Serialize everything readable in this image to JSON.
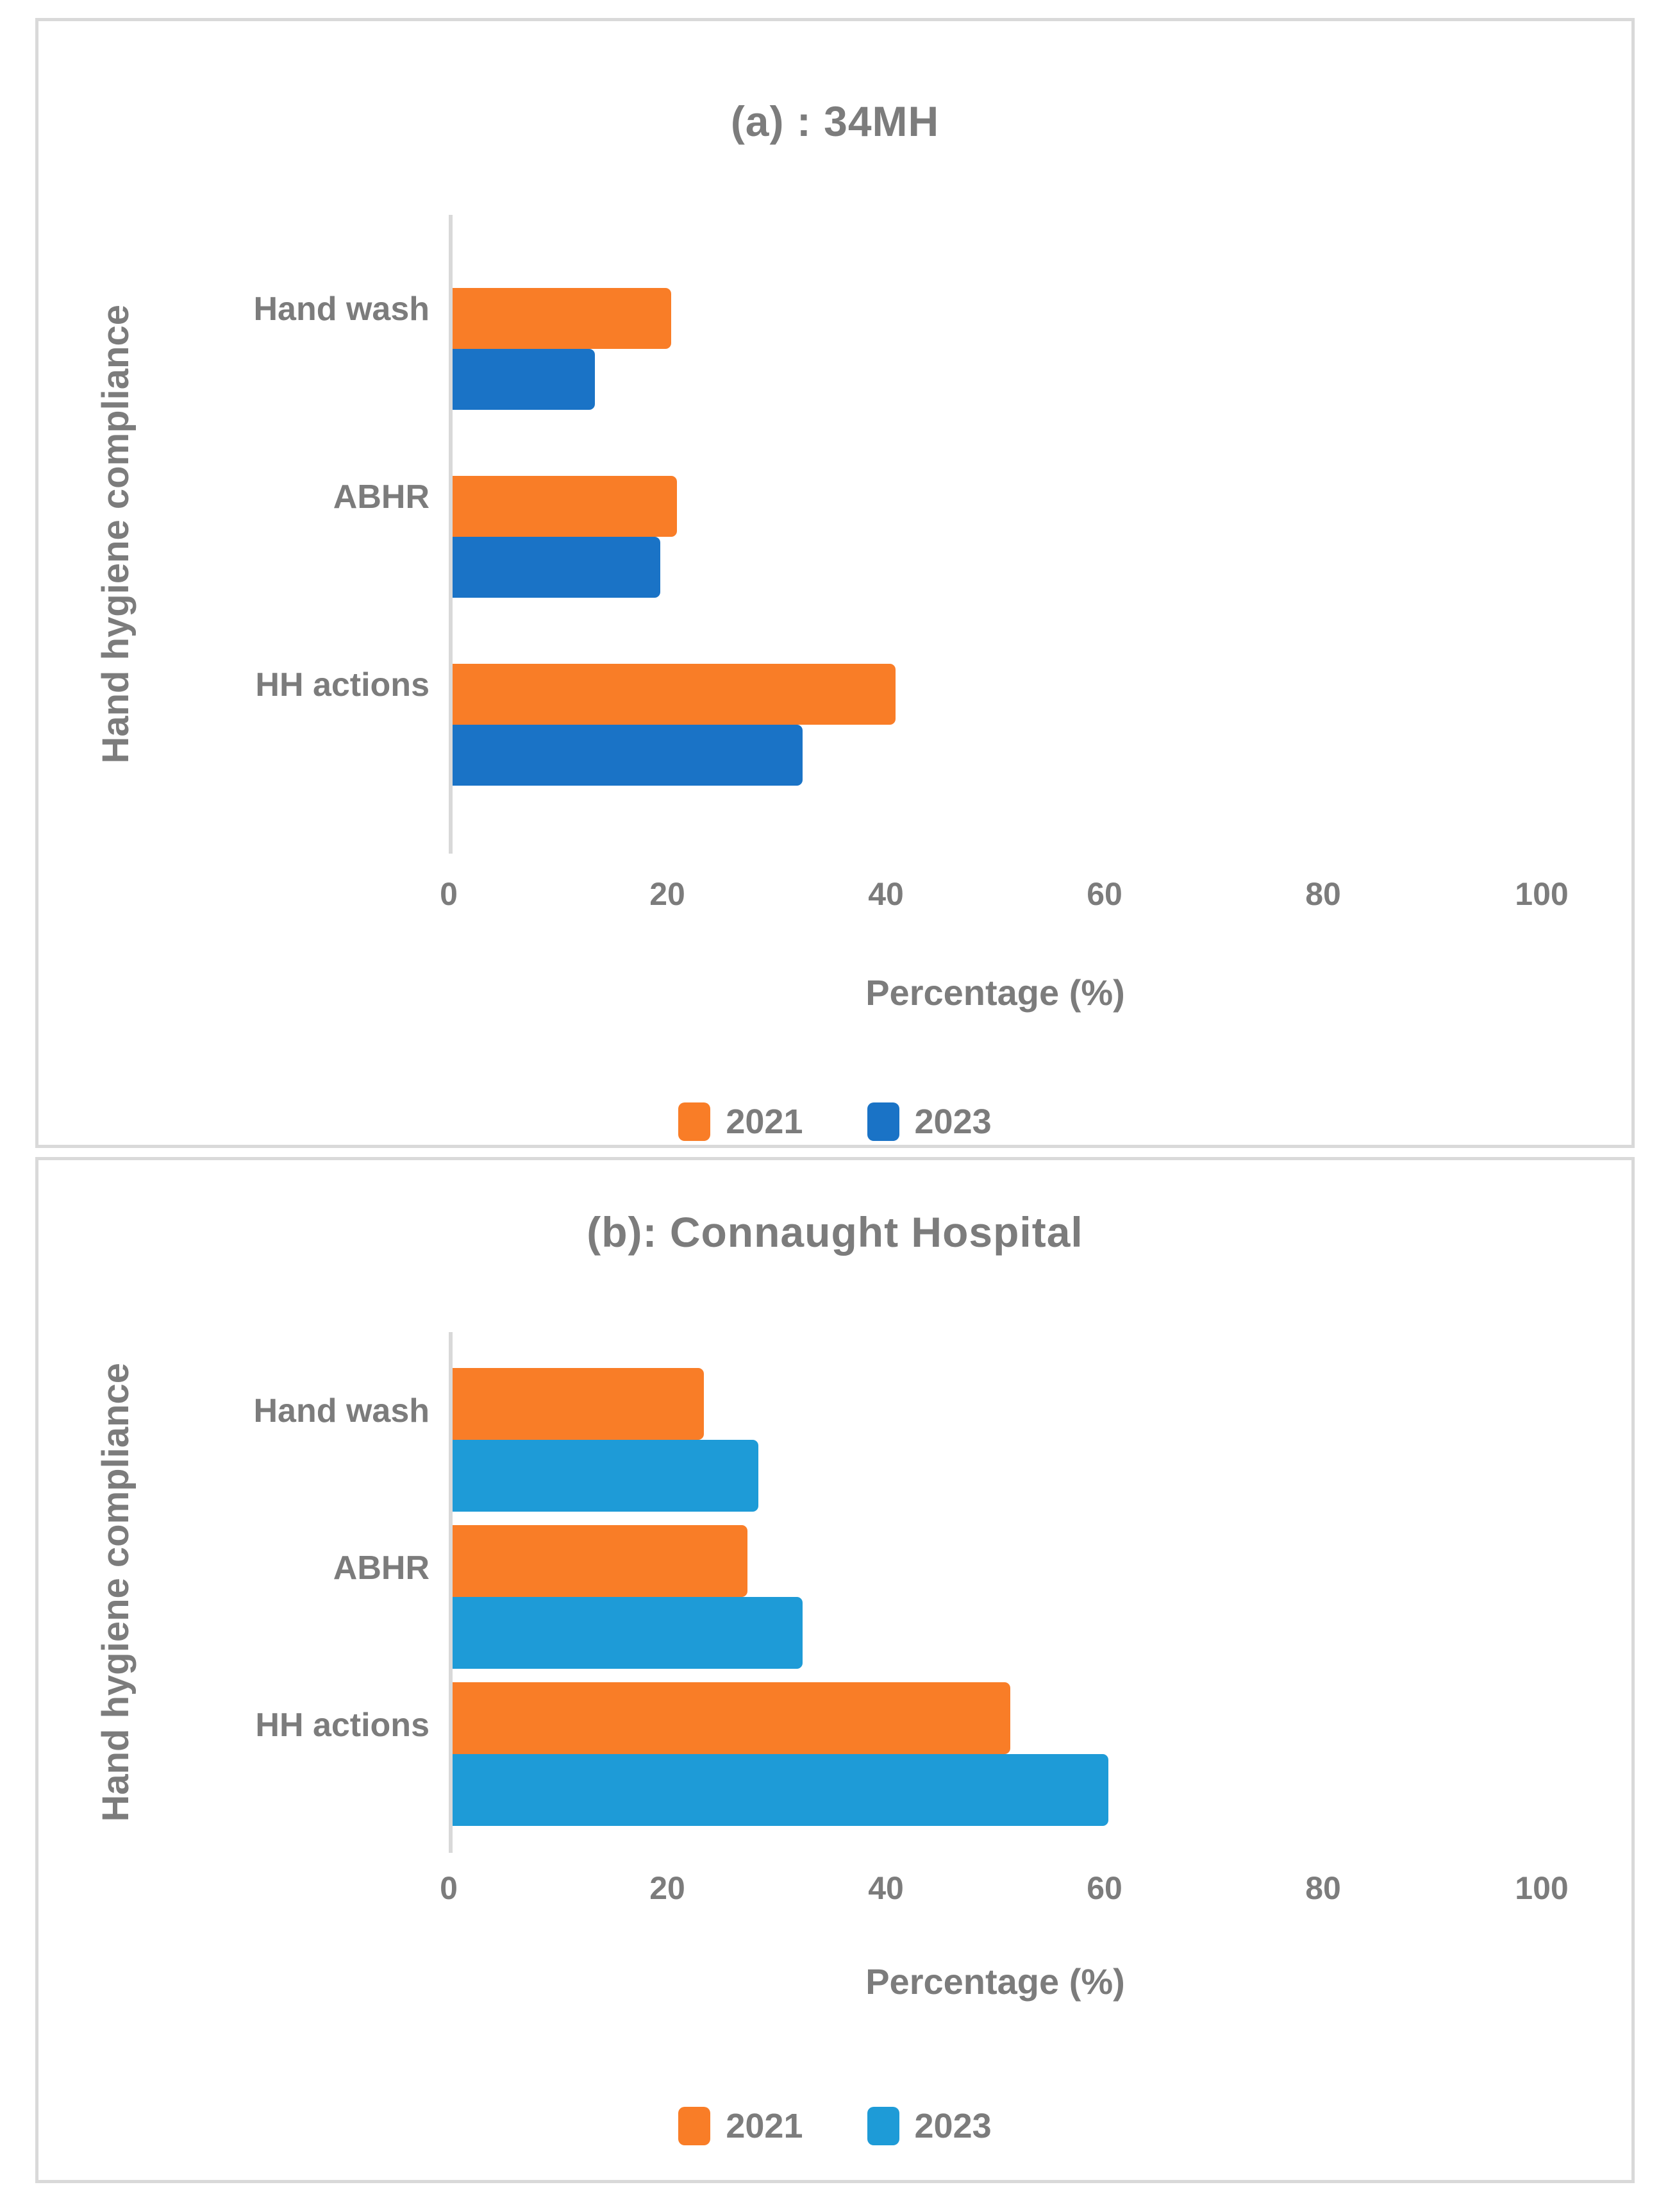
{
  "page": {
    "background": "#FFFFFF",
    "panel_border_color": "#D9D9D9",
    "axis_line_color": "#D9D9D9",
    "text_color": "#7C7C7C"
  },
  "chart_data": [
    {
      "type": "bar",
      "orientation": "horizontal",
      "title": "(a) : 34MH",
      "xlabel": "Percentage (%)",
      "ylabel": "Hand hygiene compliance",
      "categories": [
        "Hand wash",
        "ABHR",
        "HH actions"
      ],
      "series": [
        {
          "name": "2021",
          "color": "#F97D27",
          "values": [
            20,
            20.5,
            40.5
          ]
        },
        {
          "name": "2023",
          "color": "#1A73C6",
          "values": [
            13,
            19,
            32
          ]
        }
      ],
      "x_ticks": [
        0,
        20,
        40,
        60,
        80,
        100
      ],
      "x_range": [
        0,
        100
      ],
      "grid": false,
      "legend_position": "bottom",
      "legend": [
        "2021",
        "2023"
      ]
    },
    {
      "type": "bar",
      "orientation": "horizontal",
      "title": "(b): Connaught Hospital",
      "xlabel": "Percentage (%)",
      "ylabel": "Hand hygiene compliance",
      "categories": [
        "Hand wash",
        "ABHR",
        "HH actions"
      ],
      "series": [
        {
          "name": "2021",
          "color": "#F97D27",
          "values": [
            23,
            27,
            51
          ]
        },
        {
          "name": "2023",
          "color": "#1E9BD7",
          "values": [
            28,
            32,
            60
          ]
        }
      ],
      "x_ticks": [
        0,
        20,
        40,
        60,
        80,
        100
      ],
      "x_range": [
        0,
        100
      ],
      "grid": false,
      "legend_position": "bottom",
      "legend": [
        "2021",
        "2023"
      ]
    }
  ]
}
